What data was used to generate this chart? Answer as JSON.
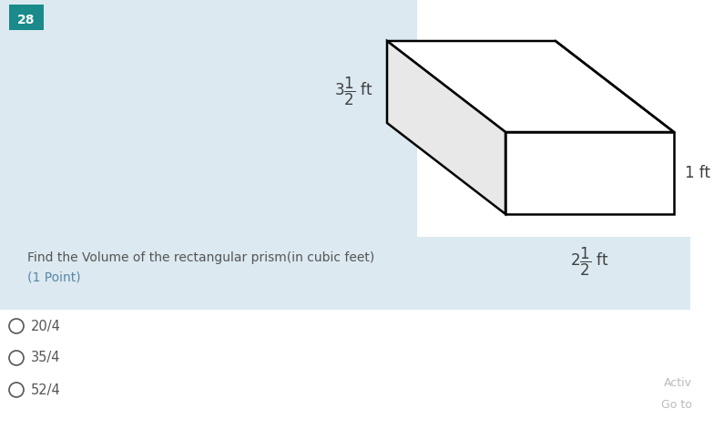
{
  "bg_blue": "#dce9f0",
  "bg_white": "#ffffff",
  "bg_bottom": "#ffffff",
  "question_number": "28",
  "question_number_bg": "#1a8a8a",
  "question_text": "Find the Volume of the rectangular prism(in cubic feet)",
  "question_subtext": "(1 Point)",
  "choices": [
    "20/4",
    "35/4",
    "52/4"
  ],
  "prism_face_color": "#ffffff",
  "prism_edge_color": "#000000",
  "text_color": "#404040",
  "choice_text_color": "#555555",
  "footer_color": "#bbbbbb",
  "question_text_color": "#555555",
  "point_text_color": "#5588aa"
}
